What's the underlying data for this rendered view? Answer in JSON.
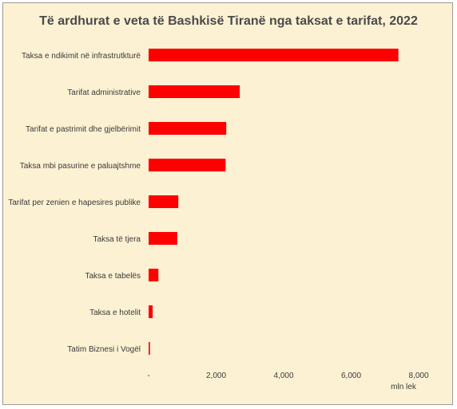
{
  "chart_data": {
    "type": "bar",
    "orientation": "horizontal",
    "title": "Të ardhurat e veta të Bashkisë Tiranë nga taksat e tarifat, 2022",
    "categories": [
      "Taksa e ndikimit në infrastrutkturë",
      "Tarifat administrative",
      "Tarifat e pastrimit dhe gjelbërimit",
      "Taksa mbi pasurine e paluajtshme",
      "Tarifat per zenien e hapesires publike",
      "Taksa të tjera",
      "Taksa e tabelës",
      "Taksa e hotelit",
      "Tatim Biznesi i Vogël"
    ],
    "values": [
      7400,
      2700,
      2300,
      2280,
      880,
      850,
      290,
      120,
      40
    ],
    "xlim": [
      0,
      8000
    ],
    "x_ticks": [
      0,
      2000,
      4000,
      6000,
      8000
    ],
    "x_tick_labels": [
      "-",
      "2,000",
      "4,000",
      "6,000",
      "8,000"
    ],
    "xlabel": "mln lek",
    "ylabel": "",
    "grid": false,
    "bar_color": "#ff0000",
    "background_color": "#fdf1d3"
  }
}
